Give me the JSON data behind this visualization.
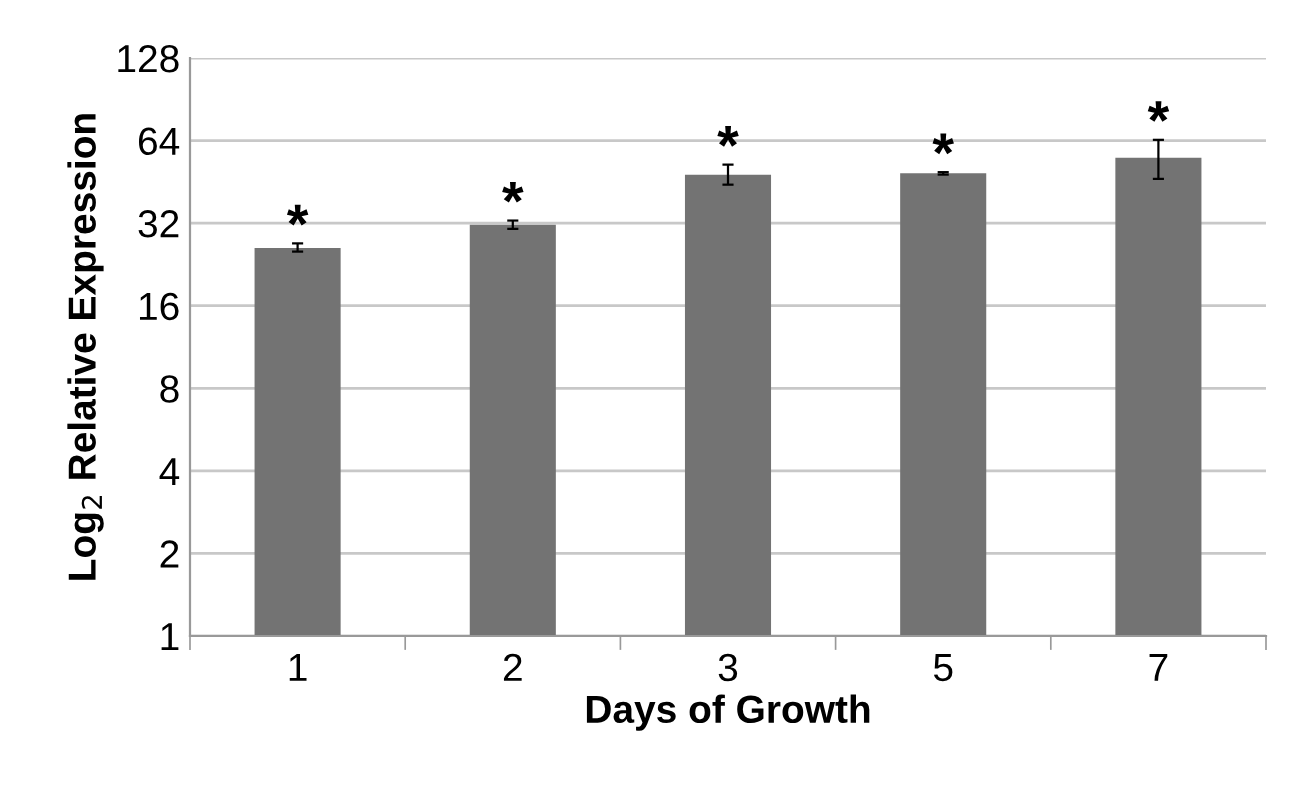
{
  "chart_data": {
    "type": "bar",
    "xlabel": "Days of Growth",
    "ylabel": "Log$_{2}$ Relative Expression",
    "categories": [
      "1",
      "2",
      "3",
      "5",
      "7"
    ],
    "values": [
      26,
      31.6,
      48,
      48.6,
      55.4
    ],
    "errors": [
      [
        25.2,
        27
      ],
      [
        30.5,
        32.7
      ],
      [
        44.2,
        52.3
      ],
      [
        48.1,
        49.1
      ],
      [
        46.4,
        64.4
      ]
    ],
    "color": "#737373",
    "log": "y",
    "ylim": [
      1,
      128
    ],
    "yticks": [
      1,
      2,
      4,
      8,
      16,
      32,
      64,
      128
    ],
    "grid": "y",
    "annotations": [
      {
        "text": "*",
        "x": "1",
        "y": 27
      },
      {
        "text": "*",
        "x": "2",
        "y": 32.7
      },
      {
        "text": "*",
        "x": "3",
        "y": 52.3
      },
      {
        "text": "*",
        "x": "5",
        "y": 49.1
      },
      {
        "text": "*",
        "x": "7",
        "y": 64.4
      }
    ]
  }
}
